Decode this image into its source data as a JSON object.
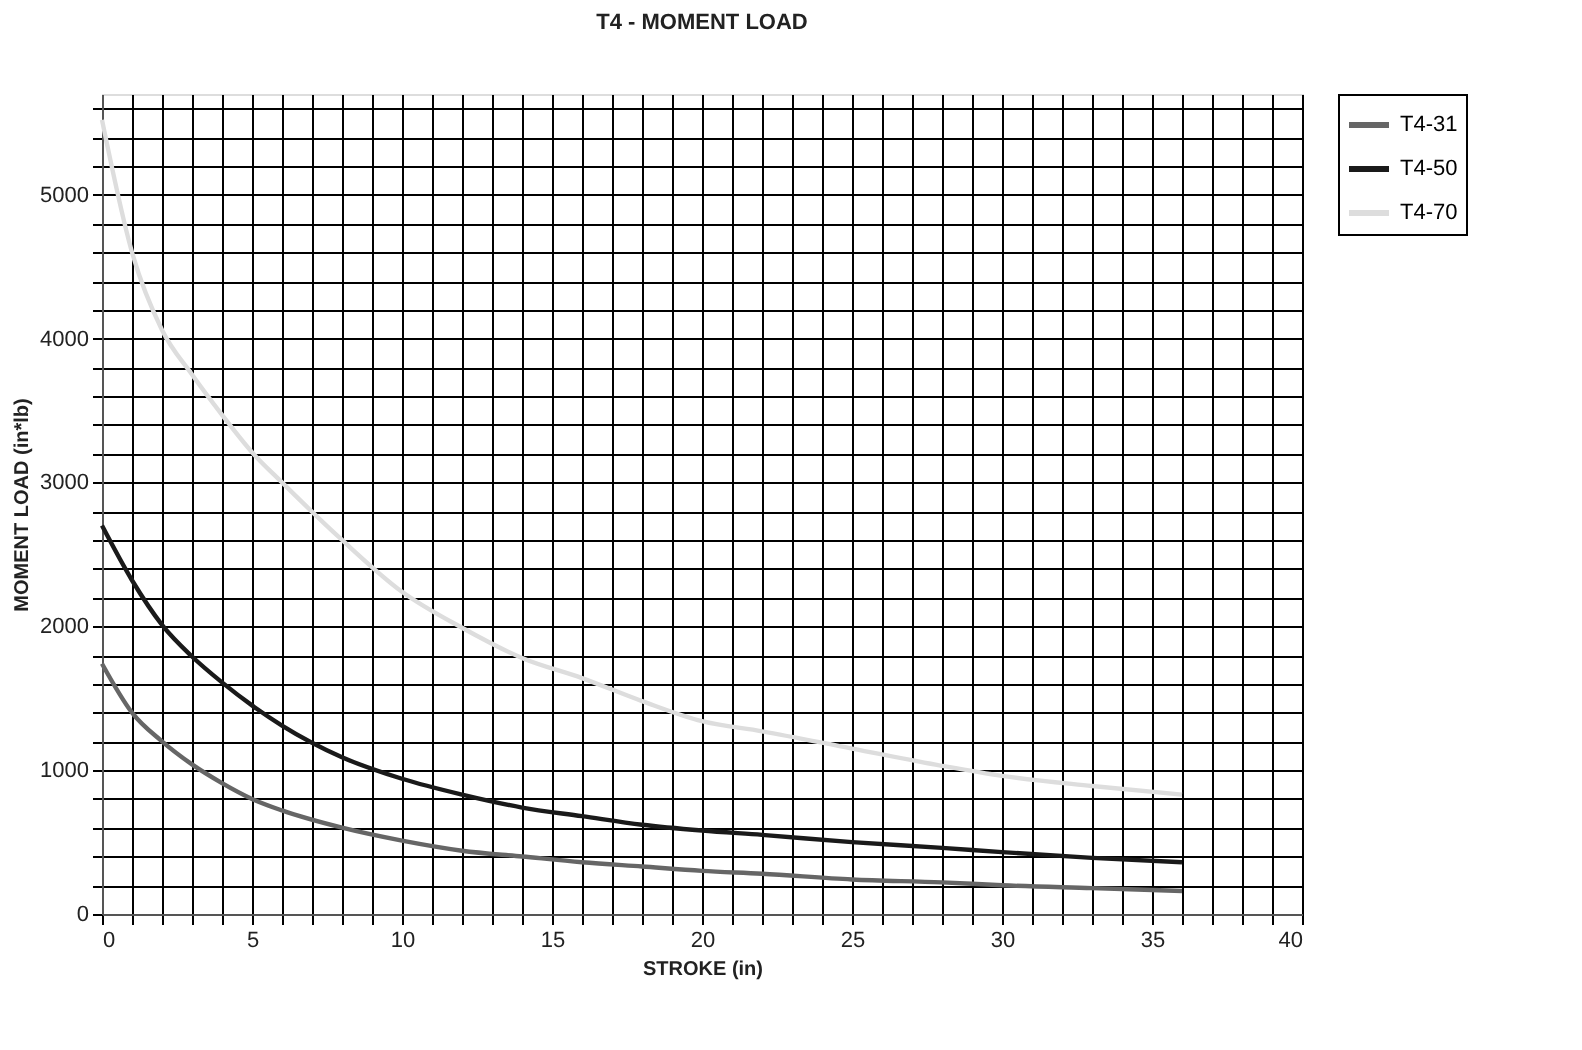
{
  "chart_data": {
    "type": "line",
    "title": "T4 - MOMENT LOAD",
    "xlabel": "STROKE (in)",
    "ylabel": "MOMENT LOAD (in*lb)",
    "x": [
      0,
      1,
      2,
      3,
      4,
      5,
      6,
      8,
      10,
      12,
      14,
      16,
      18,
      20,
      22,
      25,
      28,
      30,
      33,
      36
    ],
    "series": [
      {
        "name": "T4-31",
        "color": "#666666",
        "values": [
          1740,
          1400,
          1200,
          1040,
          910,
          800,
          720,
          600,
          510,
          440,
          400,
          360,
          330,
          300,
          280,
          240,
          220,
          200,
          180,
          160
        ]
      },
      {
        "name": "T4-50",
        "color": "#1a1a1a",
        "values": [
          2700,
          2320,
          2010,
          1790,
          1610,
          1450,
          1310,
          1090,
          940,
          830,
          740,
          680,
          620,
          580,
          550,
          500,
          460,
          430,
          390,
          360
        ]
      },
      {
        "name": "T4-70",
        "color": "#dddddd",
        "values": [
          5520,
          4600,
          4060,
          3750,
          3470,
          3210,
          3000,
          2600,
          2240,
          1990,
          1780,
          1640,
          1480,
          1340,
          1270,
          1150,
          1030,
          960,
          890,
          830
        ]
      }
    ],
    "xlim": [
      0,
      40
    ],
    "ylim": [
      0,
      5700
    ],
    "xticks": [
      0,
      {
        "value": 1,
        "label": null
      },
      {
        "value": 2,
        "label": null
      },
      {
        "value": 3,
        "label": null
      },
      {
        "value": 4,
        "label": null
      },
      5,
      {
        "value": 6,
        "label": null
      },
      {
        "value": 7,
        "label": null
      },
      {
        "value": 8,
        "label": null
      },
      {
        "value": 9,
        "label": null
      },
      10,
      {
        "value": 11,
        "label": null
      },
      {
        "value": 12,
        "label": null
      },
      {
        "value": 13,
        "label": null
      },
      {
        "value": 14,
        "label": null
      },
      15,
      {
        "value": 16,
        "label": null
      },
      {
        "value": 17,
        "label": null
      },
      {
        "value": 18,
        "label": null
      },
      {
        "value": 19,
        "label": null
      },
      20,
      {
        "value": 21,
        "label": null
      },
      {
        "value": 22,
        "label": null
      },
      {
        "value": 23,
        "label": null
      },
      {
        "value": 24,
        "label": null
      },
      25,
      {
        "value": 26,
        "label": null
      },
      {
        "value": 27,
        "label": null
      },
      {
        "value": 28,
        "label": null
      },
      {
        "value": 29,
        "label": null
      },
      30,
      {
        "value": 31,
        "label": null
      },
      {
        "value": 32,
        "label": null
      },
      {
        "value": 33,
        "label": null
      },
      {
        "value": 34,
        "label": null
      },
      35,
      {
        "value": 36,
        "label": null
      },
      {
        "value": 37,
        "label": null
      },
      {
        "value": 38,
        "label": null
      },
      {
        "value": 39,
        "label": null
      },
      40
    ],
    "yticks": [
      0,
      {
        "value": 200,
        "label": null
      },
      {
        "value": 400,
        "label": null
      },
      {
        "value": 600,
        "label": null
      },
      {
        "value": 800,
        "label": null
      },
      1000,
      {
        "value": 1200,
        "label": null
      },
      {
        "value": 1400,
        "label": null
      },
      {
        "value": 1600,
        "label": null
      },
      {
        "value": 1800,
        "label": null
      },
      2000,
      {
        "value": 2200,
        "label": null
      },
      {
        "value": 2400,
        "label": null
      },
      {
        "value": 2600,
        "label": null
      },
      {
        "value": 2800,
        "label": null
      },
      3000,
      {
        "value": 3200,
        "label": null
      },
      {
        "value": 3400,
        "label": null
      },
      {
        "value": 3600,
        "label": null
      },
      {
        "value": 3800,
        "label": null
      },
      4000,
      {
        "value": 4200,
        "label": null
      },
      {
        "value": 4400,
        "label": null
      },
      {
        "value": 4600,
        "label": null
      },
      {
        "value": 4800,
        "label": null
      },
      5000,
      {
        "value": 5200,
        "label": null
      },
      {
        "value": 5400,
        "label": null
      },
      {
        "value": 5600,
        "label": null
      }
    ],
    "grid": true,
    "legend": "right",
    "marker": "none",
    "line_style": "solid"
  }
}
